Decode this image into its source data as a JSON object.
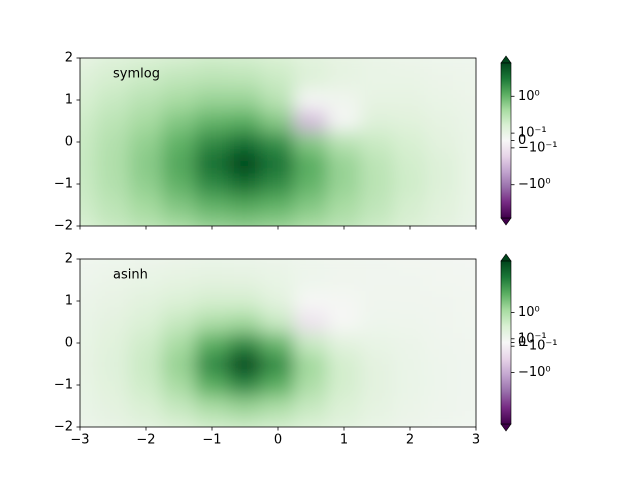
{
  "chart_data": [
    {
      "type": "heatmap",
      "norm": "symlog",
      "linthresh": 0.1,
      "linscale": 0.18,
      "annotation": "symlog",
      "clim": [
        -8,
        8
      ],
      "colormap": [
        "#40004b",
        "#762a83",
        "#9970ab",
        "#c2a5cf",
        "#e7d4e8",
        "#f7f7f7",
        "#d9f0d3",
        "#a6dba0",
        "#5aae61",
        "#1b7837",
        "#00441b"
      ],
      "colorbar_extend": "both",
      "show_xtick_labels": false,
      "xlim": [
        -3,
        3
      ],
      "ylim": [
        -2,
        2
      ],
      "xticks": [
        -3,
        -2,
        -1,
        0,
        1,
        2,
        3
      ],
      "yticks": [
        {
          "value": -2,
          "label": "−2"
        },
        {
          "value": -1,
          "label": "−1"
        },
        0,
        1,
        2
      ],
      "cbar_ticks": [
        {
          "value": 1,
          "label": "10⁰"
        },
        {
          "value": 0.1,
          "label": "10⁻¹"
        },
        0,
        {
          "value": -0.1,
          "label": "−10⁻¹"
        },
        {
          "value": -1,
          "label": "−10⁰"
        }
      ],
      "x": [
        -3,
        -2.5,
        -2,
        -1.5,
        -1,
        -0.5,
        0,
        0.5,
        1,
        1.5,
        2,
        2.5,
        3
      ],
      "y": [
        -2,
        -1.5,
        -1,
        -0.5,
        0,
        0.5,
        1,
        1.5,
        2
      ],
      "z": [
        [
          0.17,
          0.24,
          0.32,
          0.44,
          0.57,
          0.63,
          0.56,
          0.43,
          0.31,
          0.22,
          0.16,
          0.12,
          0.09
        ],
        [
          0.2,
          0.29,
          0.45,
          0.7,
          1.07,
          1.3,
          1.06,
          0.68,
          0.42,
          0.27,
          0.18,
          0.13,
          0.1
        ],
        [
          0.22,
          0.34,
          0.57,
          1.07,
          2.24,
          3.5,
          2.21,
          1.02,
          0.52,
          0.3,
          0.2,
          0.14,
          0.1
        ],
        [
          0.23,
          0.36,
          0.63,
          1.3,
          3.5,
          7.91,
          3.42,
          1.17,
          0.52,
          0.29,
          0.19,
          0.14,
          0.1
        ],
        [
          0.22,
          0.34,
          0.56,
          1.06,
          2.21,
          3.42,
          2.0,
          0.66,
          0.31,
          0.22,
          0.17,
          0.12,
          0.1
        ],
        [
          0.2,
          0.29,
          0.43,
          0.68,
          1.02,
          1.17,
          0.66,
          -0.27,
          0.02,
          0.14,
          0.13,
          0.11,
          0.09
        ],
        [
          0.17,
          0.23,
          0.31,
          0.42,
          0.52,
          0.52,
          0.31,
          0.02,
          0.05,
          0.11,
          0.11,
          0.1,
          0.08
        ],
        [
          0.14,
          0.18,
          0.22,
          0.27,
          0.3,
          0.29,
          0.22,
          0.14,
          0.11,
          0.1,
          0.1,
          0.08,
          0.07
        ],
        [
          0.11,
          0.14,
          0.16,
          0.18,
          0.2,
          0.19,
          0.17,
          0.13,
          0.11,
          0.1,
          0.08,
          0.07,
          0.06
        ]
      ]
    },
    {
      "type": "heatmap",
      "norm": "asinh",
      "linear_width": 0.7,
      "annotation": "asinh",
      "clim": [
        -8,
        8
      ],
      "colormap": [
        "#40004b",
        "#762a83",
        "#9970ab",
        "#c2a5cf",
        "#e7d4e8",
        "#f7f7f7",
        "#d9f0d3",
        "#a6dba0",
        "#5aae61",
        "#1b7837",
        "#00441b"
      ],
      "colorbar_extend": "both",
      "show_xtick_labels": true,
      "xlim": [
        -3,
        3
      ],
      "ylim": [
        -2,
        2
      ],
      "xticks": [
        {
          "value": -3,
          "label": "−3"
        },
        {
          "value": -2,
          "label": "−2"
        },
        {
          "value": -1,
          "label": "−1"
        },
        0,
        1,
        2,
        3
      ],
      "yticks": [
        {
          "value": -2,
          "label": "−2"
        },
        {
          "value": -1,
          "label": "−1"
        },
        0,
        1,
        2
      ],
      "cbar_ticks": [
        {
          "value": 1,
          "label": "10⁰"
        },
        {
          "value": 0.1,
          "label": "10⁻¹"
        },
        0,
        {
          "value": -0.1,
          "label": "−10⁻¹"
        },
        {
          "value": -1,
          "label": "−10⁰"
        }
      ],
      "x": [
        -3,
        -2.5,
        -2,
        -1.5,
        -1,
        -0.5,
        0,
        0.5,
        1,
        1.5,
        2,
        2.5,
        3
      ],
      "y": [
        -2,
        -1.5,
        -1,
        -0.5,
        0,
        0.5,
        1,
        1.5,
        2
      ],
      "z": [
        [
          0.17,
          0.24,
          0.32,
          0.44,
          0.57,
          0.63,
          0.56,
          0.43,
          0.31,
          0.22,
          0.16,
          0.12,
          0.09
        ],
        [
          0.2,
          0.29,
          0.45,
          0.7,
          1.07,
          1.3,
          1.06,
          0.68,
          0.42,
          0.27,
          0.18,
          0.13,
          0.1
        ],
        [
          0.22,
          0.34,
          0.57,
          1.07,
          2.24,
          3.5,
          2.21,
          1.02,
          0.52,
          0.3,
          0.2,
          0.14,
          0.1
        ],
        [
          0.23,
          0.36,
          0.63,
          1.3,
          3.5,
          7.91,
          3.42,
          1.17,
          0.52,
          0.29,
          0.19,
          0.14,
          0.1
        ],
        [
          0.22,
          0.34,
          0.56,
          1.06,
          2.21,
          3.42,
          2.0,
          0.66,
          0.31,
          0.22,
          0.17,
          0.12,
          0.1
        ],
        [
          0.2,
          0.29,
          0.43,
          0.68,
          1.02,
          1.17,
          0.66,
          -0.27,
          0.02,
          0.14,
          0.13,
          0.11,
          0.09
        ],
        [
          0.17,
          0.23,
          0.31,
          0.42,
          0.52,
          0.52,
          0.31,
          0.02,
          0.05,
          0.11,
          0.11,
          0.1,
          0.08
        ],
        [
          0.14,
          0.18,
          0.22,
          0.27,
          0.3,
          0.29,
          0.22,
          0.14,
          0.11,
          0.1,
          0.1,
          0.08,
          0.07
        ],
        [
          0.11,
          0.14,
          0.16,
          0.18,
          0.2,
          0.19,
          0.17,
          0.13,
          0.11,
          0.1,
          0.08,
          0.07,
          0.06
        ]
      ]
    }
  ]
}
